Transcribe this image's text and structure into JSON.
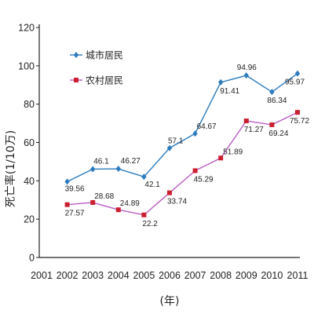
{
  "chart_data": {
    "type": "line",
    "x": [
      "2001",
      "2002",
      "2003",
      "2004",
      "2005",
      "2006",
      "2007",
      "2008",
      "2009",
      "2010",
      "2011"
    ],
    "ylabel": "死亡率(1/10万)",
    "xlabel": "(年)",
    "ylim": [
      0,
      120
    ],
    "yticks": [
      "0",
      "20",
      "40",
      "60",
      "80",
      "100",
      "120"
    ],
    "legend_position": "top-left",
    "series": [
      {
        "name": "城市居民",
        "color": "#2b7bbf",
        "marker": "diamond",
        "values": [
          null,
          39.56,
          46.1,
          46.27,
          42.1,
          57.1,
          64.67,
          91.41,
          94.96,
          86.34,
          95.97
        ],
        "labels": [
          "",
          "39.56",
          "46.1",
          "46.27",
          "42.1",
          "57.1",
          "64.67",
          "91.41",
          "94.96",
          "86.34",
          "95.97"
        ]
      },
      {
        "name": "农村居民",
        "color": "#cc1f2f",
        "line_color": "#b85cc0",
        "marker": "square",
        "values": [
          null,
          27.57,
          28.68,
          24.89,
          22.2,
          33.74,
          45.29,
          51.89,
          71.27,
          69.24,
          75.72
        ],
        "labels": [
          "",
          "27.57",
          "28.68",
          "24.89",
          "22.2",
          "33.74",
          "45.29",
          "51.89",
          "71.27",
          "69.24",
          "75.72"
        ]
      }
    ]
  }
}
